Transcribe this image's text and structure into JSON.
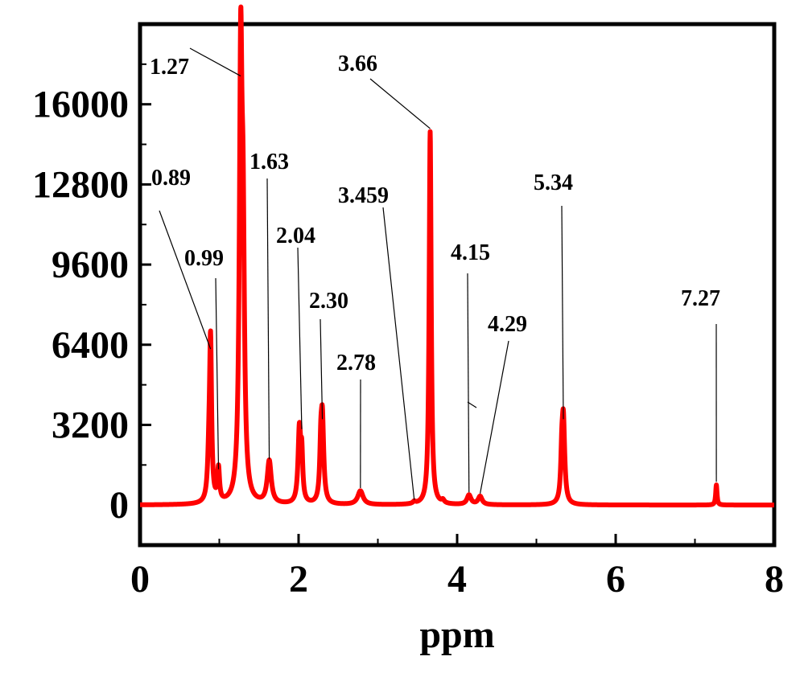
{
  "chart_data": {
    "type": "line",
    "title": "",
    "xlabel": "ppm",
    "ylabel": "",
    "xlim": [
      0,
      8
    ],
    "ylim": [
      -1600,
      19200
    ],
    "x_ticks": [
      "0",
      "2",
      "4",
      "6",
      "8"
    ],
    "y_ticks": [
      "0",
      "3200",
      "6400",
      "9600",
      "12800",
      "16000"
    ],
    "grid": false,
    "legend": "none",
    "line_color": "#ff0000",
    "series": [
      {
        "name": "",
        "peaks": [
          {
            "ppm": 0.89,
            "height": 6100,
            "width": 0.015
          },
          {
            "ppm": 0.87,
            "height": 1500,
            "width": 0.02
          },
          {
            "ppm": 0.99,
            "height": 1300,
            "width": 0.015
          },
          {
            "ppm": 1.27,
            "height": 17000,
            "width": 0.02
          },
          {
            "ppm": 1.3,
            "height": 9000,
            "width": 0.02
          },
          {
            "ppm": 1.63,
            "height": 1700,
            "width": 0.03
          },
          {
            "ppm": 2.01,
            "height": 2900,
            "width": 0.02
          },
          {
            "ppm": 2.04,
            "height": 1700,
            "width": 0.015
          },
          {
            "ppm": 2.3,
            "height": 3300,
            "width": 0.02
          },
          {
            "ppm": 2.28,
            "height": 1700,
            "width": 0.015
          },
          {
            "ppm": 2.78,
            "height": 550,
            "width": 0.04
          },
          {
            "ppm": 3.459,
            "height": 80,
            "width": 0.02
          },
          {
            "ppm": 3.66,
            "height": 14900,
            "width": 0.015
          },
          {
            "ppm": 3.82,
            "height": 120,
            "width": 0.02
          },
          {
            "ppm": 4.15,
            "height": 380,
            "width": 0.03
          },
          {
            "ppm": 4.29,
            "height": 330,
            "width": 0.03
          },
          {
            "ppm": 5.34,
            "height": 3300,
            "width": 0.02
          },
          {
            "ppm": 5.32,
            "height": 1400,
            "width": 0.015
          },
          {
            "ppm": 7.27,
            "height": 800,
            "width": 0.01
          }
        ]
      }
    ],
    "annotations": [
      {
        "label": "1.27",
        "ppm": 1.27,
        "y": 17000
      },
      {
        "label": "0.89",
        "ppm": 0.89,
        "y": 6100
      },
      {
        "label": "0.99",
        "ppm": 0.99,
        "y": 1300
      },
      {
        "label": "1.63",
        "ppm": 1.63,
        "y": 1700
      },
      {
        "label": "2.04",
        "ppm": 2.04,
        "y": 2900
      },
      {
        "label": "2.30",
        "ppm": 2.3,
        "y": 3300
      },
      {
        "label": "2.78",
        "ppm": 2.78,
        "y": 550
      },
      {
        "label": "3.459",
        "ppm": 3.459,
        "y": 80
      },
      {
        "label": "3.66",
        "ppm": 3.66,
        "y": 14900
      },
      {
        "label": "4.15",
        "ppm": 4.15,
        "y": 380
      },
      {
        "label": "4.29",
        "ppm": 4.29,
        "y": 330
      },
      {
        "label": "5.34",
        "ppm": 5.34,
        "y": 3300
      },
      {
        "label": "7.27",
        "ppm": 7.27,
        "y": 800
      }
    ]
  }
}
